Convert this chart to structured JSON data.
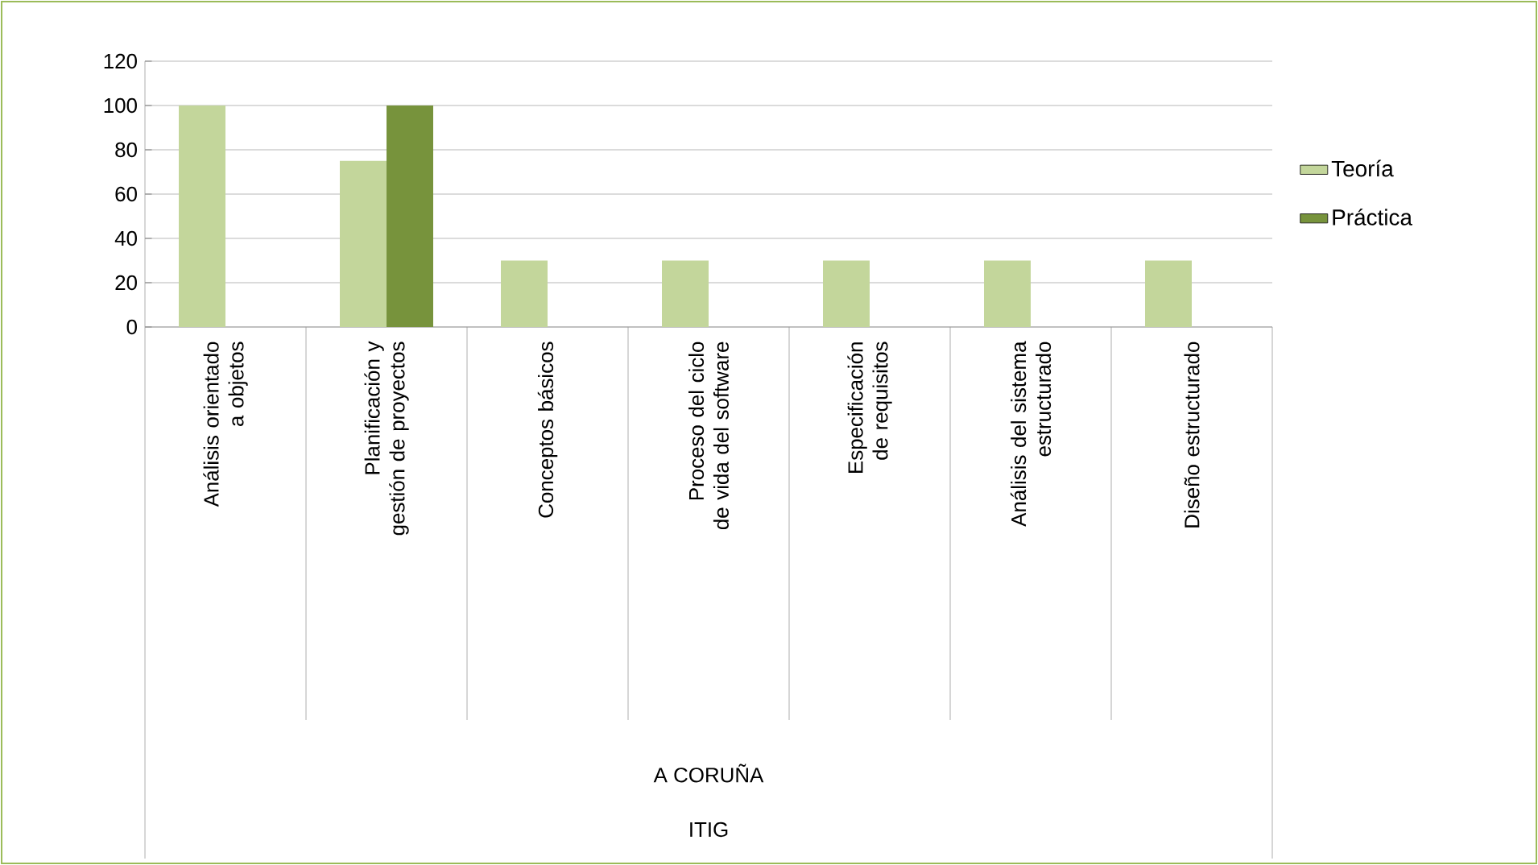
{
  "chart_data": {
    "type": "bar",
    "categories": [
      "Análisis orientado a objetos",
      "Planificación y gestión de proyectos",
      "Conceptos básicos",
      "Proceso del ciclo de vida del software",
      "Especificación de requisitos",
      "Análisis del sistema estructurado",
      "Diseño estructurado"
    ],
    "series": [
      {
        "name": "Teoría",
        "color": "#c3d69b",
        "values": [
          100,
          75,
          30,
          30,
          30,
          30,
          30
        ]
      },
      {
        "name": "Práctica",
        "color": "#77933c",
        "values": [
          null,
          100,
          null,
          null,
          null,
          null,
          null
        ]
      }
    ],
    "annotations": [
      "A CORUÑA",
      "ITIG"
    ],
    "ylim": [
      0,
      120
    ],
    "yticks": [
      0,
      20,
      40,
      60,
      80,
      100,
      120
    ],
    "grid": "y",
    "legend": "right"
  }
}
